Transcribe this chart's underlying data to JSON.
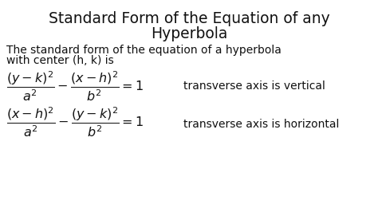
{
  "title_line1": "Standard Form of the Equation of any",
  "title_line2": "Hyperbola",
  "subtitle_line1": "The standard form of the equation of a hyperbola",
  "subtitle_line2": "with center (h, k) is",
  "eq1": "$\\dfrac{(y-k)^2}{a^2} - \\dfrac{(x-h)^2}{b^2} = 1$",
  "eq1_note": "transverse axis is vertical",
  "eq2": "$\\dfrac{(x-h)^2}{a^2} - \\dfrac{(y-k)^2}{b^2} = 1$",
  "eq2_note": "transverse axis is horizontal",
  "bg_color": "#ffffff",
  "text_color": "#111111",
  "title_fontsize": 13.5,
  "body_fontsize": 10,
  "eq_fontsize": 11.5,
  "note_fontsize": 10
}
